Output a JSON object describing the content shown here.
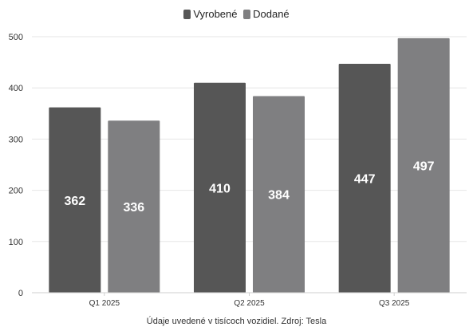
{
  "chart_data": {
    "type": "bar",
    "categories": [
      "Q1 2025",
      "Q2 2025",
      "Q3 2025"
    ],
    "series": [
      {
        "name": "Vyrobené",
        "values": [
          362,
          410,
          447
        ],
        "color": "#565656"
      },
      {
        "name": "Dodané",
        "values": [
          336,
          384,
          497
        ],
        "color": "#7f7f81"
      }
    ],
    "ylim": [
      0,
      500
    ],
    "yticks": [
      0,
      100,
      200,
      300,
      400,
      500
    ],
    "grid": true,
    "legend": "top-center",
    "data_labels": true
  },
  "footnote": "Údaje uvedené v tisícoch vozidiel. Zdroj: Tesla"
}
